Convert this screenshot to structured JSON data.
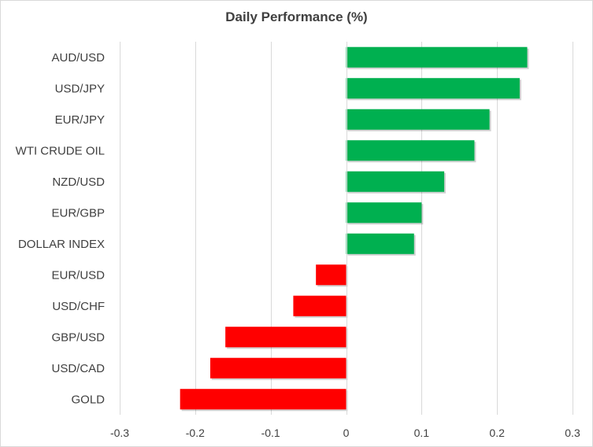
{
  "chart_data": {
    "type": "bar",
    "orientation": "horizontal",
    "title": "Daily Performance (%)",
    "xlabel": "",
    "ylabel": "",
    "categories": [
      "AUD/USD",
      "USD/JPY",
      "EUR/JPY",
      "WTI CRUDE OIL",
      "NZD/USD",
      "EUR/GBP",
      "DOLLAR INDEX",
      "EUR/USD",
      "USD/CHF",
      "GBP/USD",
      "USD/CAD",
      "GOLD"
    ],
    "values": [
      0.24,
      0.23,
      0.19,
      0.17,
      0.13,
      0.1,
      0.09,
      -0.04,
      -0.07,
      -0.16,
      -0.18,
      -0.22
    ],
    "xlim": [
      -0.3,
      0.3
    ],
    "xticks": [
      -0.3,
      -0.2,
      -0.1,
      0,
      0.1,
      0.2,
      0.3
    ],
    "xtick_labels": [
      "-0.3",
      "-0.2",
      "-0.1",
      "0",
      "0.1",
      "0.2",
      "0.3"
    ],
    "grid": true,
    "legend": "none",
    "colors": {
      "positive": "#00b050",
      "negative": "#ff0000",
      "grid": "#d9d9d9",
      "text": "#404040"
    }
  }
}
